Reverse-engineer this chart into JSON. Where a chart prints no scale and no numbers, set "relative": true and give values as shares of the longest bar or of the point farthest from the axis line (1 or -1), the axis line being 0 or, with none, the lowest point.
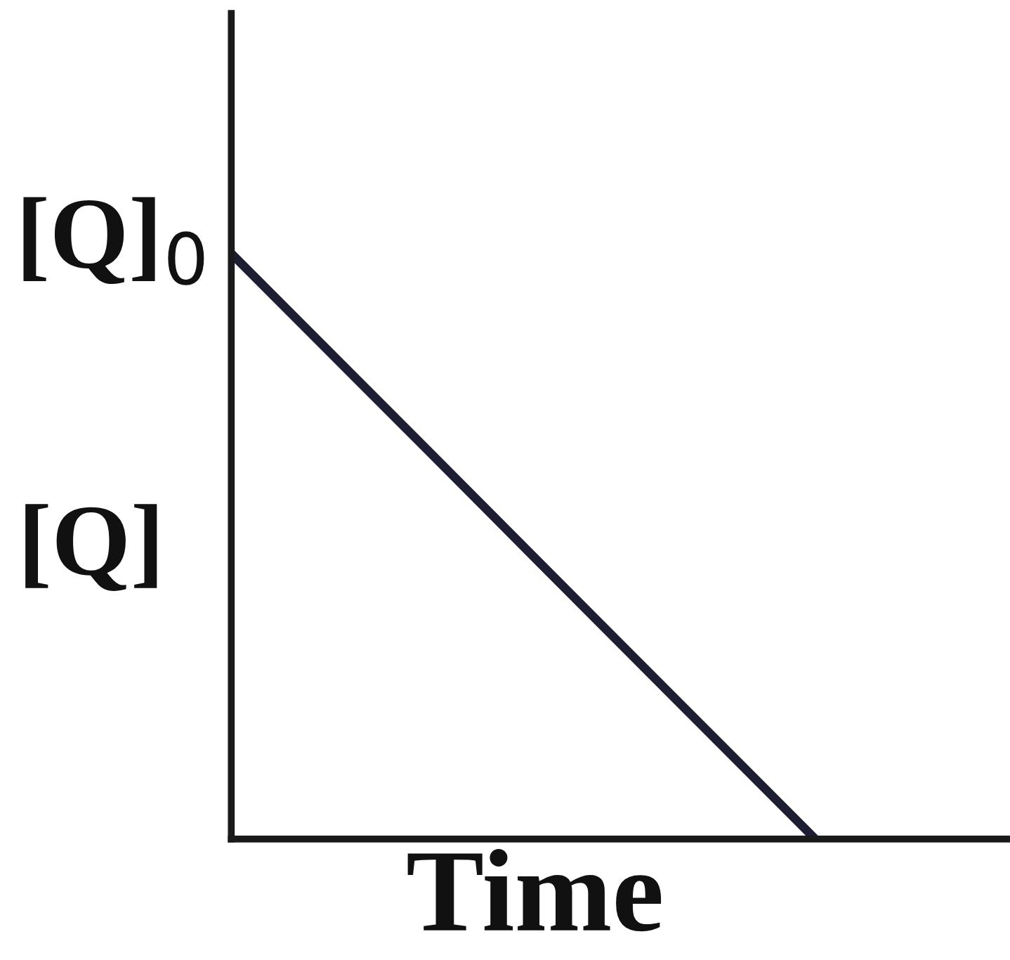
{
  "chart_data": {
    "type": "line",
    "relative": true,
    "xlabel": "Time",
    "ylabel": "[Q]",
    "categories": [
      null,
      null,
      null,
      null,
      null
    ],
    "values": [
      1,
      0.667,
      0.333,
      0,
      null
    ],
    "color": "#1e1e32",
    "annotations": [
      "[Q]$_{0}$"
    ]
  }
}
